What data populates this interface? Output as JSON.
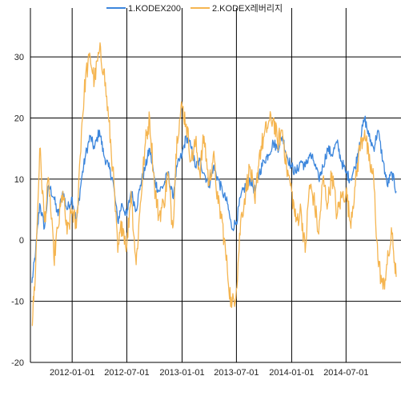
{
  "chart_data": {
    "type": "line",
    "title": "",
    "xlabel": "",
    "ylabel": "",
    "xlim": [
      "2011-08-15",
      "2014-12-31"
    ],
    "ylim": [
      -20,
      38
    ],
    "x_ticks": [
      "2012-01-01",
      "2012-07-01",
      "2013-01-01",
      "2013-07-01",
      "2014-01-01",
      "2014-07-01"
    ],
    "y_ticks": [
      -20,
      -10,
      0,
      10,
      20,
      30
    ],
    "grid": true,
    "legend_position": "top",
    "series": [
      {
        "name": "1.KODEX200",
        "color": "#3c86dc",
        "x": [
          "2011-08-20",
          "2011-09-01",
          "2011-09-15",
          "2011-10-01",
          "2011-10-15",
          "2011-11-01",
          "2011-11-15",
          "2011-12-01",
          "2011-12-15",
          "2012-01-01",
          "2012-01-15",
          "2012-02-01",
          "2012-02-15",
          "2012-03-01",
          "2012-03-15",
          "2012-04-01",
          "2012-04-15",
          "2012-05-01",
          "2012-05-15",
          "2012-06-01",
          "2012-06-15",
          "2012-07-01",
          "2012-07-15",
          "2012-08-01",
          "2012-08-15",
          "2012-09-01",
          "2012-09-15",
          "2012-10-01",
          "2012-10-15",
          "2012-11-01",
          "2012-11-15",
          "2012-12-01",
          "2012-12-15",
          "2013-01-01",
          "2013-01-15",
          "2013-02-01",
          "2013-02-15",
          "2013-03-01",
          "2013-03-15",
          "2013-04-01",
          "2013-04-15",
          "2013-05-01",
          "2013-05-15",
          "2013-06-01",
          "2013-06-15",
          "2013-07-01",
          "2013-07-15",
          "2013-08-01",
          "2013-08-15",
          "2013-09-01",
          "2013-09-15",
          "2013-10-01",
          "2013-10-15",
          "2013-11-01",
          "2013-11-15",
          "2013-12-01",
          "2013-12-15",
          "2014-01-01",
          "2014-01-15",
          "2014-02-01",
          "2014-02-15",
          "2014-03-01",
          "2014-03-15",
          "2014-04-01",
          "2014-04-15",
          "2014-05-01",
          "2014-05-15",
          "2014-06-01",
          "2014-06-15",
          "2014-07-01",
          "2014-07-15",
          "2014-08-01",
          "2014-08-15",
          "2014-09-01",
          "2014-09-15",
          "2014-10-01",
          "2014-10-15",
          "2014-11-01",
          "2014-11-15",
          "2014-12-01",
          "2014-12-15"
        ],
        "values": [
          -7,
          -2,
          6,
          2,
          9,
          7,
          4,
          8,
          5,
          7,
          3,
          10,
          14,
          17,
          15,
          18,
          14,
          12,
          10,
          3,
          6,
          4,
          8,
          5,
          9,
          12,
          15,
          10,
          8,
          9,
          11,
          7,
          12,
          14,
          17,
          15,
          12,
          13,
          11,
          9,
          12,
          10,
          8,
          6,
          2,
          3,
          7,
          9,
          10,
          8,
          11,
          13,
          14,
          16,
          15,
          17,
          14,
          12,
          11,
          13,
          12,
          14,
          13,
          10,
          12,
          15,
          14,
          16,
          13,
          11,
          10,
          12,
          16,
          20,
          17,
          15,
          18,
          13,
          9,
          11,
          8
        ]
      },
      {
        "name": "2.KODEX레버리지",
        "color": "#f5b550",
        "x": [
          "2011-08-20",
          "2011-09-01",
          "2011-09-15",
          "2011-10-01",
          "2011-10-15",
          "2011-11-01",
          "2011-11-15",
          "2011-12-01",
          "2011-12-15",
          "2012-01-01",
          "2012-01-15",
          "2012-02-01",
          "2012-02-15",
          "2012-03-01",
          "2012-03-15",
          "2012-04-01",
          "2012-04-15",
          "2012-05-01",
          "2012-05-15",
          "2012-06-01",
          "2012-06-15",
          "2012-07-01",
          "2012-07-15",
          "2012-08-01",
          "2012-08-15",
          "2012-09-01",
          "2012-09-15",
          "2012-10-01",
          "2012-10-15",
          "2012-11-01",
          "2012-11-15",
          "2012-12-01",
          "2012-12-15",
          "2013-01-01",
          "2013-01-15",
          "2013-02-01",
          "2013-02-15",
          "2013-03-01",
          "2013-03-15",
          "2013-04-01",
          "2013-04-15",
          "2013-05-01",
          "2013-05-15",
          "2013-06-01",
          "2013-06-15",
          "2013-07-01",
          "2013-07-15",
          "2013-08-01",
          "2013-08-15",
          "2013-09-01",
          "2013-09-15",
          "2013-10-01",
          "2013-10-15",
          "2013-11-01",
          "2013-11-15",
          "2013-12-01",
          "2013-12-15",
          "2014-01-01",
          "2014-01-15",
          "2014-02-01",
          "2014-02-15",
          "2014-03-01",
          "2014-03-15",
          "2014-04-01",
          "2014-04-15",
          "2014-05-01",
          "2014-05-15",
          "2014-06-01",
          "2014-06-15",
          "2014-07-01",
          "2014-07-15",
          "2014-08-01",
          "2014-08-15",
          "2014-09-01",
          "2014-09-15",
          "2014-10-01",
          "2014-10-15",
          "2014-11-01",
          "2014-11-15",
          "2014-12-01",
          "2014-12-15"
        ],
        "values": [
          -14,
          -5,
          15,
          3,
          10,
          -3,
          2,
          8,
          1,
          5,
          2,
          18,
          27,
          30,
          26,
          31,
          28,
          20,
          12,
          -2,
          3,
          -1,
          8,
          -4,
          6,
          16,
          20,
          9,
          4,
          6,
          11,
          2,
          17,
          22,
          19,
          13,
          16,
          11,
          17,
          9,
          14,
          6,
          3,
          -5,
          -11,
          -8,
          3,
          8,
          12,
          6,
          14,
          17,
          19,
          20,
          16,
          18,
          12,
          8,
          3,
          5,
          -2,
          9,
          7,
          1,
          10,
          6,
          11,
          4,
          7,
          8,
          3,
          9,
          15,
          18,
          13,
          10,
          -3,
          -8,
          -4,
          1,
          -6
        ]
      }
    ]
  }
}
